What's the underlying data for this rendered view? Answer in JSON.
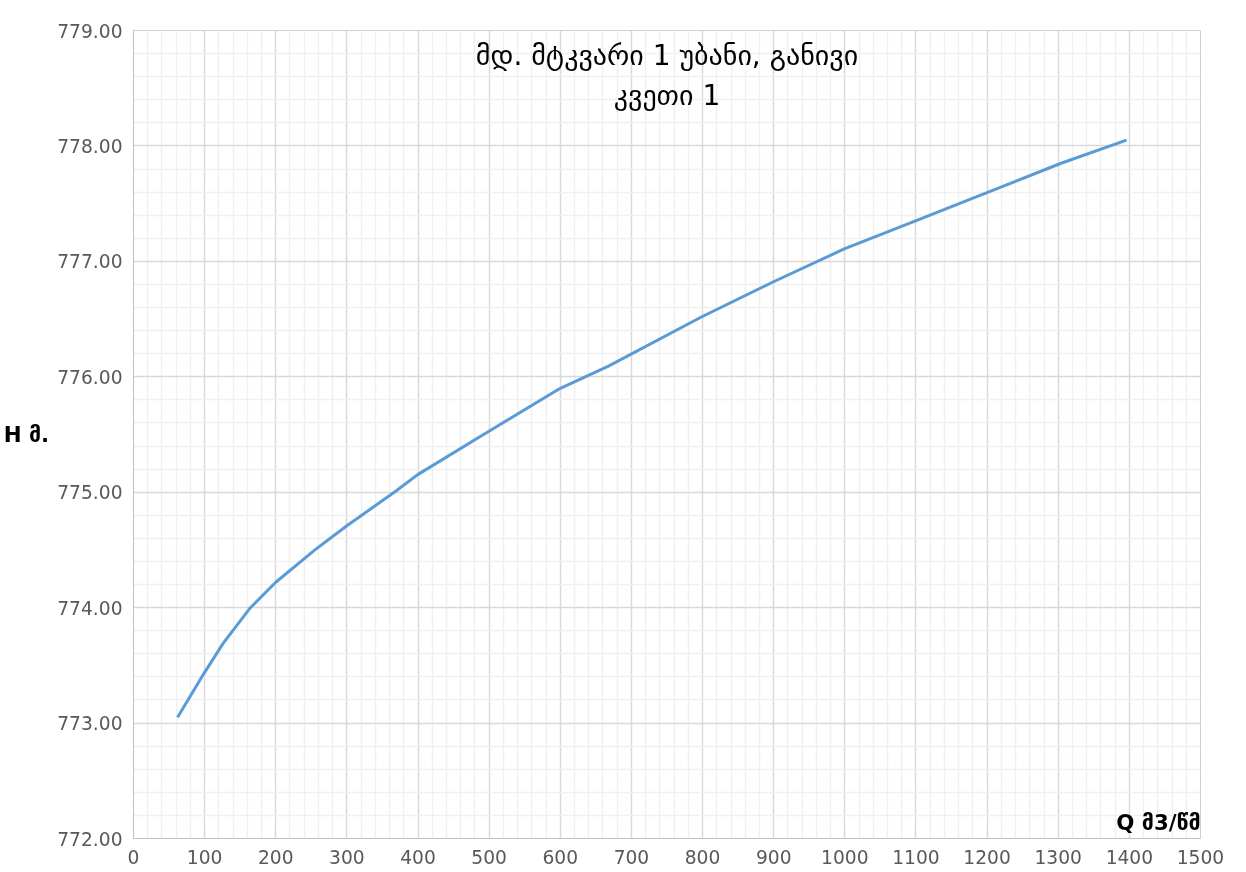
{
  "chart_data": {
    "type": "line",
    "title": "მდ. მტკვარი 1 უბანი, განივი კვეთი 1",
    "xlabel": "Q მ3/წმ",
    "ylabel": "H მ.",
    "series": [
      {
        "color": "#5b9bd5",
        "x": [
          62,
          96,
          126,
          163,
          200,
          255,
          300,
          369,
          399,
          484,
          600,
          667,
          799,
          902,
          1000,
          1103,
          1206,
          1304,
          1396
        ],
        "values": [
          773.05,
          773.4,
          773.69,
          773.99,
          774.22,
          774.5,
          774.71,
          775.01,
          775.15,
          775.47,
          775.9,
          776.09,
          776.52,
          776.83,
          777.11,
          777.36,
          777.61,
          777.85,
          778.05
        ]
      }
    ],
    "xlim": [
      0,
      1500
    ],
    "xticks": [
      0,
      100,
      200,
      300,
      400,
      500,
      600,
      700,
      800,
      900,
      1000,
      1100,
      1200,
      1300,
      1400,
      1500
    ],
    "ylim": [
      772,
      779
    ],
    "yticks": [
      {
        "value": 772,
        "label": "772.00"
      },
      {
        "value": 773,
        "label": "773.00"
      },
      {
        "value": 774,
        "label": "774.00"
      },
      {
        "value": 775,
        "label": "775.00"
      },
      {
        "value": 776,
        "label": "776.00"
      },
      {
        "value": 777,
        "label": "777.00"
      },
      {
        "value": 778,
        "label": "778.00"
      },
      {
        "value": 779,
        "label": "779.00"
      }
    ],
    "grid": true,
    "marker": "none",
    "line_style": "solid"
  }
}
